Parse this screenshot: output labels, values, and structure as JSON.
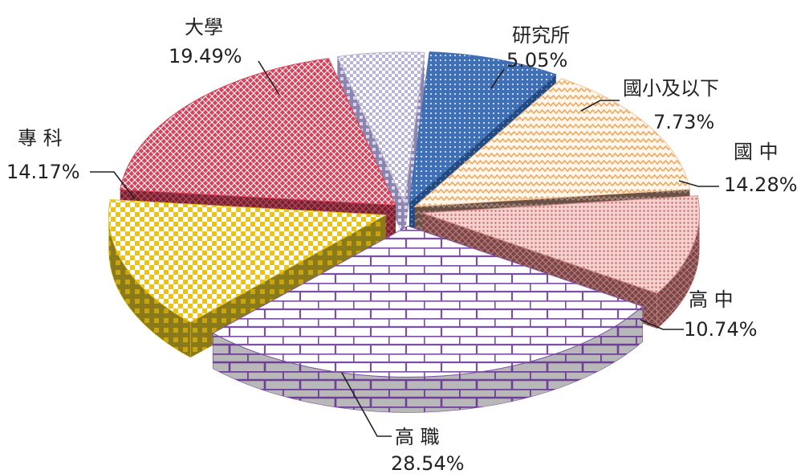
{
  "chart_data": {
    "type": "pie",
    "style": "3d-exploded",
    "categories": [
      "研究所",
      "國小及以下",
      "國 中",
      "高 中",
      "高 職",
      "專 科",
      "大學"
    ],
    "values": [
      5.05,
      7.73,
      14.28,
      10.74,
      28.54,
      14.17,
      19.49
    ],
    "value_labels": [
      "5.05%",
      "7.73%",
      "14.28%",
      "10.74%",
      "28.54%",
      "14.17%",
      "19.49%"
    ],
    "colors": [
      "#b9b3d6",
      "#3f6fb5",
      "#f3c79a",
      "#d98e8e",
      "#7b4fa3",
      "#e9c21a",
      "#d9405a"
    ],
    "legend": "none"
  }
}
